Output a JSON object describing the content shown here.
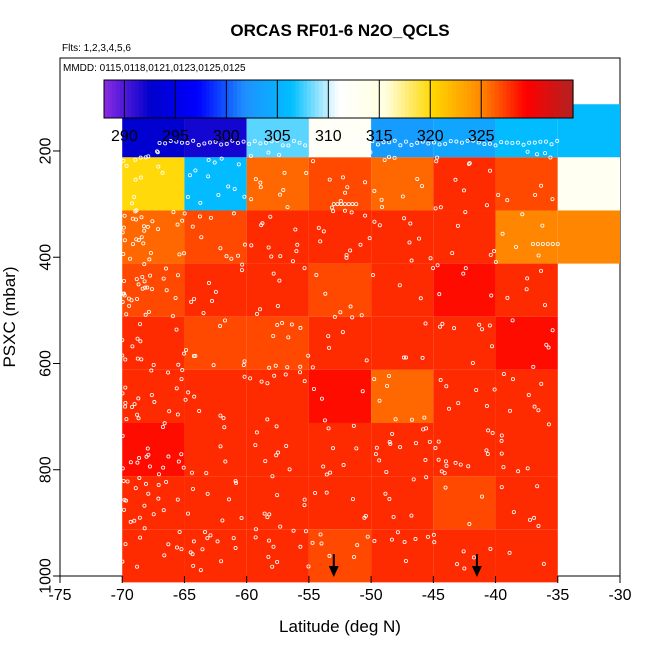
{
  "chart_data": {
    "type": "heatmap",
    "title": "ORCAS RF01-6 N2O_QCLS",
    "flights_note": "Flts: 1,2,3,4,5,6",
    "mmdd_note": "MMDD: 0115,0118,0121,0123,0125,0125",
    "xlabel": "Latitude (deg N)",
    "ylabel": "PSXC (mbar)",
    "xlim": [
      -75,
      -30
    ],
    "ylim": [
      1000,
      0
    ],
    "x_ticks": [
      -75,
      -70,
      -65,
      -60,
      -55,
      -50,
      -45,
      -40,
      -35,
      -30
    ],
    "y_ticks": [
      200,
      400,
      600,
      800,
      1000
    ],
    "colorbar": {
      "range": [
        288,
        334
      ],
      "ticks": [
        290,
        295,
        300,
        305,
        310,
        315,
        320,
        325
      ],
      "colors": [
        "#8a2be2",
        "#0000cd",
        "#0000ff",
        "#1e90ff",
        "#00bfff",
        "#ffffff",
        "#ffffe0",
        "#ffd700",
        "#ff8c00",
        "#ff0000",
        "#b22222"
      ]
    },
    "x_edges": [
      -70,
      -65,
      -60,
      -55,
      -50,
      -45,
      -40,
      -35,
      -30
    ],
    "y_edges": [
      112,
      212,
      312,
      412,
      512,
      612,
      712,
      812,
      912,
      1012
    ],
    "grid_values": [
      [
        293,
        292,
        308,
        312,
        303,
        304,
        306,
        306
      ],
      [
        320,
        306,
        326,
        327,
        326,
        328,
        327,
        313
      ],
      [
        326,
        327,
        328,
        328,
        328,
        328,
        325,
        325
      ],
      [
        327,
        328,
        328,
        327,
        328,
        329,
        328,
        null
      ],
      [
        328,
        327,
        327,
        328,
        328,
        328,
        329,
        null
      ],
      [
        328,
        328,
        328,
        329,
        326,
        328,
        328,
        null
      ],
      [
        329,
        328,
        328,
        328,
        328,
        328,
        328,
        null
      ],
      [
        328,
        328,
        328,
        328,
        328,
        327,
        328,
        null
      ],
      [
        328,
        328,
        328,
        327,
        328,
        328,
        328,
        null
      ]
    ],
    "arrows_lat": [
      -53,
      -41.5
    ]
  }
}
